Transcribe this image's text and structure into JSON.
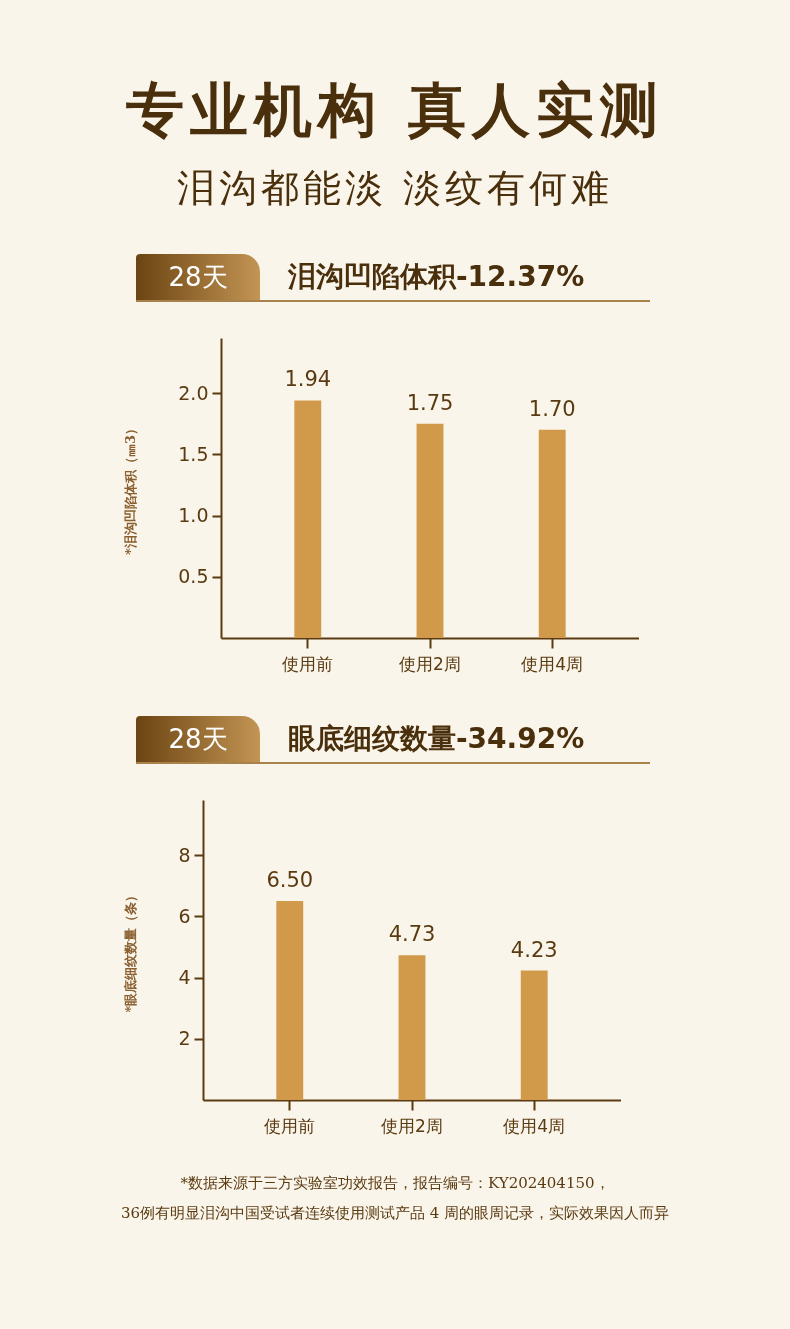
{
  "chart_data": [
    {
      "type": "bar",
      "title": "泪沟凹陷体积-12.37%",
      "subtitle": "28天",
      "annotations": [
        "专业机构 真人实测",
        "泪沟都能淡 淡纹有何难"
      ],
      "ylabel": "*泪沟凹陷体积（㎜3）",
      "categories": [
        "使用前",
        "使用2周",
        "使用4周"
      ],
      "values": [
        1.94,
        1.75,
        1.7
      ],
      "value_labels": [
        "1.94",
        "1.75",
        "1.70"
      ],
      "color": "#d19a4b",
      "ylim": [
        0,
        2.45
      ],
      "yticks": [
        {
          "value": 0.5,
          "label": "0.5"
        },
        {
          "value": 1,
          "label": "1.0"
        },
        {
          "value": 1.5,
          "label": "1.5"
        },
        {
          "value": 2,
          "label": "2.0"
        }
      ]
    },
    {
      "type": "bar",
      "title": "眼底细纹数量-34.92%",
      "subtitle": "28天",
      "annotations": [
        "*数据来源于三方实验室功效报告，报告编号：KY202404150，",
        "36例有明显泪沟中国受试者连续使用测试产品 4 周的眼周记录，实际效果因人而异"
      ],
      "ylabel": "*眼底细纹数量（条）",
      "categories": [
        "使用前",
        "使用2周",
        "使用4周"
      ],
      "values": [
        6.5,
        4.73,
        4.23
      ],
      "value_labels": [
        "6.50",
        "4.73",
        "4.23"
      ],
      "color": "#d19a4b",
      "ylim": [
        0,
        9.8
      ],
      "yticks": [
        2,
        4,
        6,
        8
      ]
    }
  ]
}
